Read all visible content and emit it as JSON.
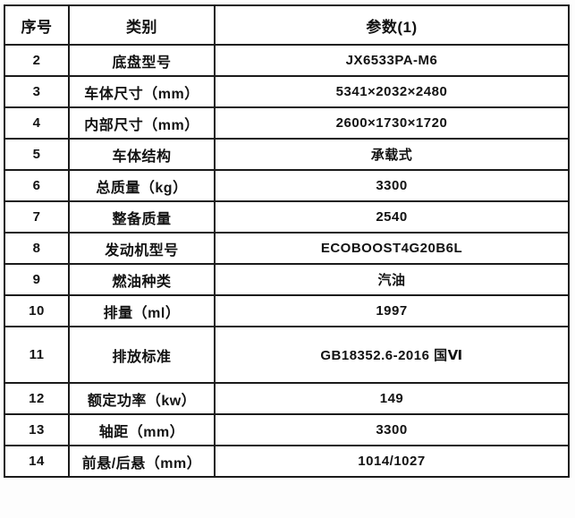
{
  "table": {
    "headers": [
      "序号",
      "类别",
      "参数(1)"
    ],
    "rows": [
      {
        "no": "2",
        "category": "底盘型号",
        "value": "JX6533PA-M6"
      },
      {
        "no": "3",
        "category": "车体尺寸（mm）",
        "value": "5341×2032×2480"
      },
      {
        "no": "4",
        "category": "内部尺寸（mm）",
        "value": "2600×1730×1720"
      },
      {
        "no": "5",
        "category": "车体结构",
        "value": "承载式"
      },
      {
        "no": "6",
        "category": "总质量（kg）",
        "value": "3300"
      },
      {
        "no": "7",
        "category": "整备质量",
        "value": "2540"
      },
      {
        "no": "8",
        "category": "发动机型号",
        "value": "ECOBOOST4G20B6L"
      },
      {
        "no": "9",
        "category": "燃油种类",
        "value": "汽油"
      },
      {
        "no": "10",
        "category": "排量（ml）",
        "value": "1997"
      },
      {
        "no": "11",
        "category": "排放标准",
        "value": "GB18352.6-2016 国Ⅵ"
      },
      {
        "no": "12",
        "category": "额定功率（kw）",
        "value": "149"
      },
      {
        "no": "13",
        "category": "轴距（mm）",
        "value": "3300"
      },
      {
        "no": "14",
        "category": "前悬/后悬（mm）",
        "value": "1014/1027"
      }
    ],
    "colors": {
      "border": "#1b1b1b",
      "text": "#121212",
      "background": "#ffffff"
    }
  }
}
